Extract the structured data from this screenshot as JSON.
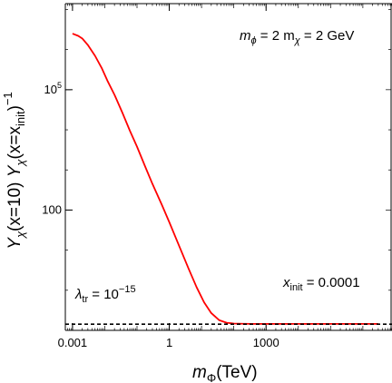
{
  "chart_data": {
    "type": "line",
    "xscale": "log",
    "yscale": "log",
    "xlim": [
      0.0006,
      8000000
    ],
    "ylim": [
      0.1,
      14000000
    ],
    "x_ticks": [
      {
        "value": 0.001,
        "label": "0.001"
      },
      {
        "value": 1,
        "label": "1"
      },
      {
        "value": 1000,
        "label": "1000"
      }
    ],
    "y_ticks": [
      {
        "value": 100,
        "label": "100"
      },
      {
        "value": 100000,
        "label": "10^5"
      }
    ],
    "xlabel": {
      "main": "m",
      "sub": "Φ",
      "unit": "(TeV)"
    },
    "ylabel": {
      "text": "Y_χ(x=10) Y_χ(x=x_init)^−1"
    },
    "annotations": {
      "mass_relation": {
        "pre": "m",
        "sub1": "ϕ",
        "mid": " = 2 m",
        "sub2": "χ",
        "post": " = 2 GeV"
      },
      "lambda": {
        "main": "λ",
        "sub": "tr",
        "mid": " = 10",
        "sup": "−15"
      },
      "x_init": {
        "main": "x",
        "sub": "init",
        "post": " = 0.0001"
      }
    },
    "series": [
      {
        "color": "#ff0000",
        "style": "solid",
        "x": [
          0.001,
          0.0015,
          0.002,
          0.003,
          0.005,
          0.008,
          0.012,
          0.02,
          0.035,
          0.06,
          0.1,
          0.18,
          0.3,
          0.6,
          1,
          2,
          4,
          7,
          12,
          20,
          35,
          60,
          100,
          200,
          400,
          1000,
          3000,
          10000,
          100000,
          3000000
        ],
        "y": [
          2500000,
          2200000,
          1900000,
          1300000,
          700000,
          350000,
          170000,
          75000,
          27000,
          9500,
          3800,
          1200,
          450,
          130,
          50,
          13,
          3.4,
          1.2,
          0.5,
          0.27,
          0.18,
          0.155,
          0.148,
          0.146,
          0.145,
          0.145,
          0.145,
          0.145,
          0.145,
          0.145
        ]
      },
      {
        "color": "#000000",
        "style": "dashed",
        "x": [
          0.0006,
          8000000
        ],
        "y": [
          0.143,
          0.143
        ]
      }
    ],
    "grid": false,
    "legend": "none"
  }
}
